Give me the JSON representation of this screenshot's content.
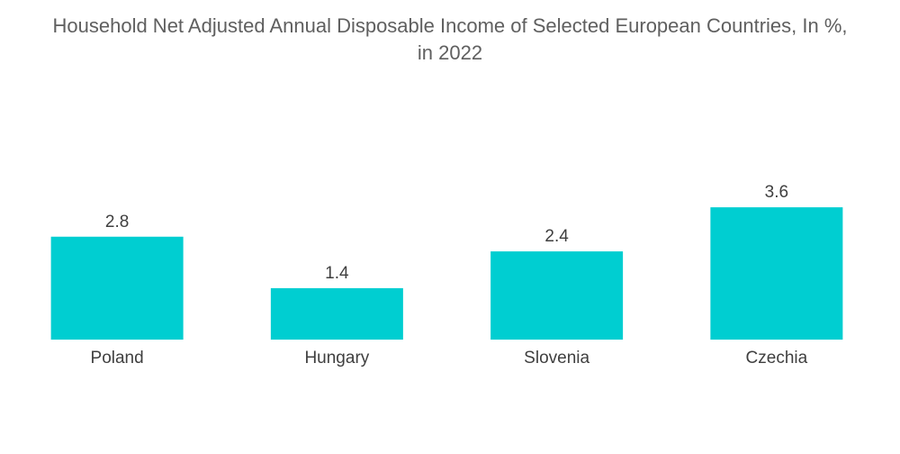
{
  "chart_data": {
    "type": "bar",
    "title": "Household Net Adjusted Annual Disposable Income of Selected European Countries, In %,\nin 2022",
    "categories": [
      "Poland",
      "Hungary",
      "Slovenia",
      "Czechia"
    ],
    "values": [
      2.8,
      1.4,
      2.4,
      3.6
    ],
    "value_labels": [
      "2.8",
      "1.4",
      "2.4",
      "3.6"
    ],
    "xlabel": "",
    "ylabel": "",
    "ylim": [
      0,
      4.2
    ],
    "grid": false,
    "legend": "none",
    "colors": {
      "bar": "#00ced1"
    }
  }
}
